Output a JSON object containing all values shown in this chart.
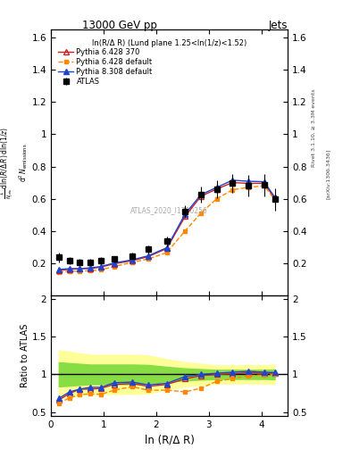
{
  "title_top": "13000 GeV pp",
  "title_right": "Jets",
  "annotation": "ln(R/Δ R) (Lund plane 1.25<ln(1/z)<1.52)",
  "watermark": "ATLAS_2020_I1790256",
  "ylabel_ratio": "Ratio to ATLAS",
  "xlabel": "ln (R/Δ R)",
  "rivet_label": "Rivet 3.1.10, ≥ 3.3M events",
  "arxiv_label": "[arXiv:1306.3436]",
  "xdata": [
    0.15,
    0.35,
    0.55,
    0.75,
    0.95,
    1.2,
    1.55,
    1.85,
    2.2,
    2.55,
    2.85,
    3.15,
    3.45,
    3.75,
    4.05,
    4.25
  ],
  "atlas_y": [
    0.235,
    0.215,
    0.205,
    0.205,
    0.215,
    0.225,
    0.245,
    0.285,
    0.335,
    0.52,
    0.625,
    0.66,
    0.695,
    0.68,
    0.685,
    0.595
  ],
  "p6_370_y": [
    0.155,
    0.16,
    0.165,
    0.165,
    0.175,
    0.195,
    0.215,
    0.24,
    0.29,
    0.49,
    0.615,
    0.66,
    0.7,
    0.695,
    0.695,
    0.605
  ],
  "p6_def_y": [
    0.145,
    0.148,
    0.15,
    0.152,
    0.158,
    0.178,
    0.205,
    0.225,
    0.265,
    0.4,
    0.51,
    0.6,
    0.655,
    0.67,
    0.68,
    0.595
  ],
  "p8_def_y": [
    0.16,
    0.165,
    0.165,
    0.17,
    0.178,
    0.2,
    0.22,
    0.245,
    0.295,
    0.505,
    0.625,
    0.67,
    0.715,
    0.708,
    0.705,
    0.61
  ],
  "atlas_err_y": [
    0.03,
    0.02,
    0.02,
    0.02,
    0.02,
    0.02,
    0.02,
    0.025,
    0.03,
    0.04,
    0.05,
    0.055,
    0.06,
    0.065,
    0.07,
    0.07
  ],
  "ratio_p6_370": [
    0.66,
    0.745,
    0.805,
    0.805,
    0.815,
    0.867,
    0.878,
    0.842,
    0.866,
    0.942,
    0.984,
    1.0,
    1.007,
    1.022,
    1.015,
    1.017
  ],
  "ratio_p6_def": [
    0.617,
    0.688,
    0.732,
    0.741,
    0.735,
    0.791,
    0.837,
    0.789,
    0.791,
    0.769,
    0.816,
    0.909,
    0.942,
    0.985,
    0.993,
    1.0
  ],
  "ratio_p8_def": [
    0.681,
    0.767,
    0.805,
    0.829,
    0.828,
    0.889,
    0.898,
    0.86,
    0.881,
    0.971,
    1.0,
    1.015,
    1.029,
    1.041,
    1.029,
    1.025
  ],
  "band_yellow_lo": [
    0.68,
    0.7,
    0.72,
    0.74,
    0.74,
    0.74,
    0.74,
    0.75,
    0.8,
    0.84,
    0.86,
    0.88,
    0.88,
    0.88,
    0.88,
    0.87
  ],
  "band_yellow_hi": [
    1.32,
    1.3,
    1.28,
    1.26,
    1.26,
    1.26,
    1.26,
    1.25,
    1.2,
    1.16,
    1.14,
    1.12,
    1.12,
    1.12,
    1.12,
    1.13
  ],
  "band_green_lo": [
    0.84,
    0.85,
    0.86,
    0.87,
    0.87,
    0.87,
    0.87,
    0.875,
    0.9,
    0.92,
    0.93,
    0.94,
    0.94,
    0.94,
    0.94,
    0.935
  ],
  "band_green_hi": [
    1.16,
    1.15,
    1.14,
    1.13,
    1.13,
    1.13,
    1.13,
    1.125,
    1.1,
    1.08,
    1.07,
    1.06,
    1.06,
    1.06,
    1.06,
    1.065
  ],
  "xlim": [
    0.0,
    4.5
  ],
  "ylim_main": [
    0.0,
    1.65
  ],
  "ylim_ratio": [
    0.45,
    2.05
  ],
  "yticks_main": [
    0.2,
    0.4,
    0.6,
    0.8,
    1.0,
    1.2,
    1.4,
    1.6
  ],
  "ytick_labels_main": [
    "0.2",
    "0.4",
    "0.6",
    "0.8",
    "1",
    "1.2",
    "1.4",
    "1.6"
  ],
  "yticks_ratio": [
    0.5,
    1.0,
    1.5,
    2.0
  ],
  "ytick_labels_ratio": [
    "0.5",
    "1",
    "1.5",
    "2"
  ],
  "color_p6_370": "#cc2222",
  "color_p6_def": "#ff8800",
  "color_p8_def": "#2244cc",
  "color_atlas": "black",
  "color_yellow": "#ffff99",
  "color_green": "#88dd44",
  "legend_labels": [
    "ATLAS",
    "Pythia 6.428 370",
    "Pythia 6.428 default",
    "Pythia 8.308 default"
  ]
}
